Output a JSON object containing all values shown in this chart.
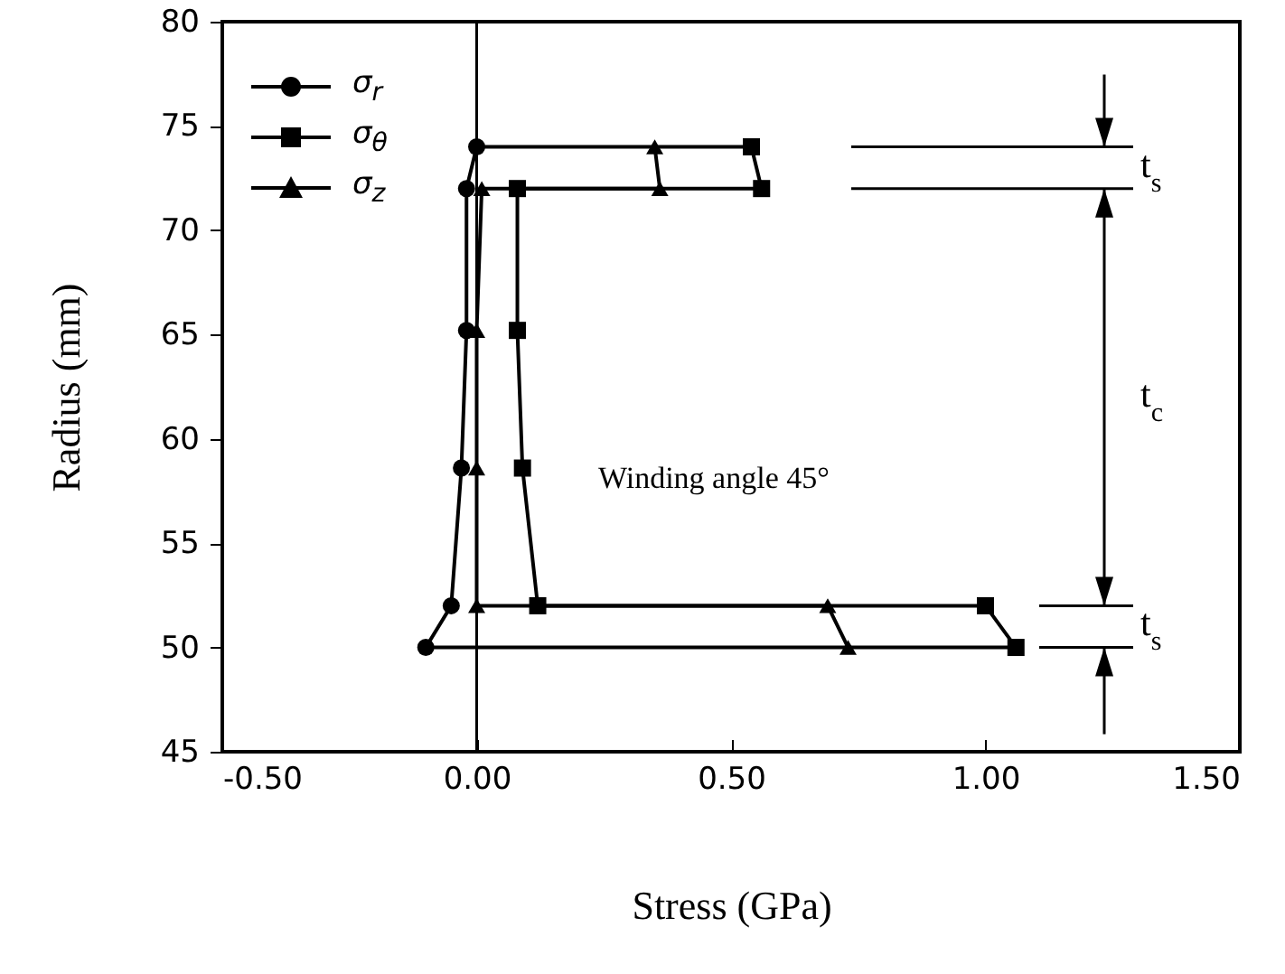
{
  "chart_data": {
    "type": "line",
    "xlabel": "Stress  (GPa)",
    "ylabel": "Radius  (mm)",
    "xlim": [
      -0.5,
      1.5
    ],
    "ylim": [
      45,
      80
    ],
    "xticks": [
      {
        "value": -0.5,
        "label": "-0.50"
      },
      {
        "value": 0,
        "label": "0.00"
      },
      {
        "value": 0.5,
        "label": "0.50"
      },
      {
        "value": 1,
        "label": "1.00"
      },
      {
        "value": 1.5,
        "label": "1.50"
      }
    ],
    "yticks": [
      45,
      50,
      55,
      60,
      65,
      70,
      75,
      80
    ],
    "grid": false,
    "legend": "top left",
    "line_style": "solid",
    "ref_lines": [
      {
        "axis": "x",
        "value": 0,
        "color": "#000000"
      }
    ],
    "annotations": [
      "Winding angle 45°",
      "t$_{s}$",
      "t$_{c}$",
      "t$_{s}$"
    ],
    "series": [
      {
        "name": "σ$_{r}$",
        "color": "#000000",
        "marker": "circle",
        "x": [
          -0.1,
          -0.05,
          -0.03,
          -0.02,
          -0.02,
          0.0
        ],
        "values": [
          50,
          52,
          58.6,
          65.2,
          72,
          74
        ]
      },
      {
        "name": "σ$_{θ}$",
        "color": "#000000",
        "marker": "square",
        "x": [
          1.06,
          1.0,
          0.12,
          0.09,
          0.08,
          0.08,
          0.56,
          0.54
        ],
        "values": [
          50,
          52,
          52,
          58.6,
          65.2,
          72,
          72,
          74
        ]
      },
      {
        "name": "σ$_{z}$",
        "color": "#000000",
        "marker": "triangle",
        "x": [
          0.73,
          0.69,
          0.0,
          0.0,
          0.0,
          0.01,
          0.36,
          0.35
        ],
        "values": [
          50,
          52,
          52,
          58.6,
          65.2,
          72,
          72,
          74
        ]
      },
      {
        "color": "#000000",
        "marker": "none",
        "x": [
          -0.1,
          1.06
        ],
        "values": [
          50,
          50
        ]
      },
      {
        "color": "#000000",
        "marker": "none",
        "x": [
          0.0,
          0.54
        ],
        "values": [
          74,
          74
        ]
      }
    ]
  }
}
